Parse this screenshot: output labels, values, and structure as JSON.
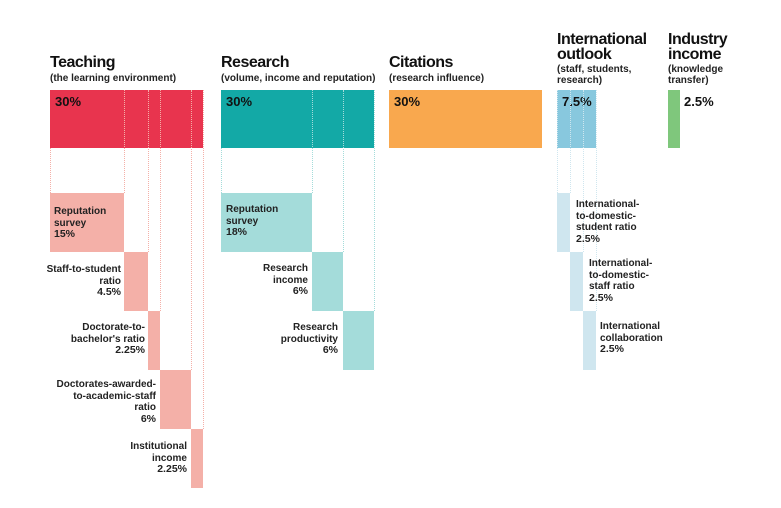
{
  "colors": {
    "teaching_main": "#e8344e",
    "teaching_sub": "#f4b0a8",
    "research_main": "#13a9a6",
    "research_sub": "#a4dcda",
    "citations_main": "#f9a84e",
    "intl_main": "#88c8de",
    "intl_sub": "#cfe6ef",
    "industry_main": "#7fc77c"
  },
  "pillars": {
    "teaching": {
      "title": "Teaching",
      "subtitle": "(the learning environment)",
      "weight": "30%"
    },
    "research": {
      "title": "Research",
      "subtitle": "(volume, income and reputation)",
      "weight": "30%"
    },
    "citations": {
      "title": "Citations",
      "subtitle": "(research influence)",
      "weight": "30%"
    },
    "international": {
      "title_line1": "International",
      "title_line2": "outlook",
      "subtitle_line1": "(staff, students,",
      "subtitle_line2": "research)",
      "weight": "7.5%"
    },
    "industry": {
      "title_line1": "Industry",
      "title_line2": "income",
      "subtitle_line1": "(knowledge",
      "subtitle_line2": "transfer)",
      "weight": "2.5%"
    }
  },
  "teaching_metrics": [
    {
      "lines": [
        "Reputation",
        "survey"
      ],
      "value": "15%"
    },
    {
      "lines": [
        "Staff-to-student",
        "ratio"
      ],
      "value": "4.5%"
    },
    {
      "lines": [
        "Doctorate-to-",
        "bachelor's ratio"
      ],
      "value": "2.25%"
    },
    {
      "lines": [
        "Doctorates-awarded-",
        "to-academic-staff",
        "ratio"
      ],
      "value": "6%"
    },
    {
      "lines": [
        "Institutional",
        "income"
      ],
      "value": "2.25%"
    }
  ],
  "research_metrics": [
    {
      "lines": [
        "Reputation",
        "survey"
      ],
      "value": "18%"
    },
    {
      "lines": [
        "Research",
        "income"
      ],
      "value": "6%"
    },
    {
      "lines": [
        "Research",
        "productivity"
      ],
      "value": "6%"
    }
  ],
  "international_metrics": [
    {
      "lines": [
        "International-",
        "to-domestic-",
        "student ratio"
      ],
      "value": "2.5%"
    },
    {
      "lines": [
        "International-",
        "to-domestic-",
        "staff ratio"
      ],
      "value": "2.5%"
    },
    {
      "lines": [
        "International",
        "collaboration"
      ],
      "value": "2.5%"
    }
  ]
}
